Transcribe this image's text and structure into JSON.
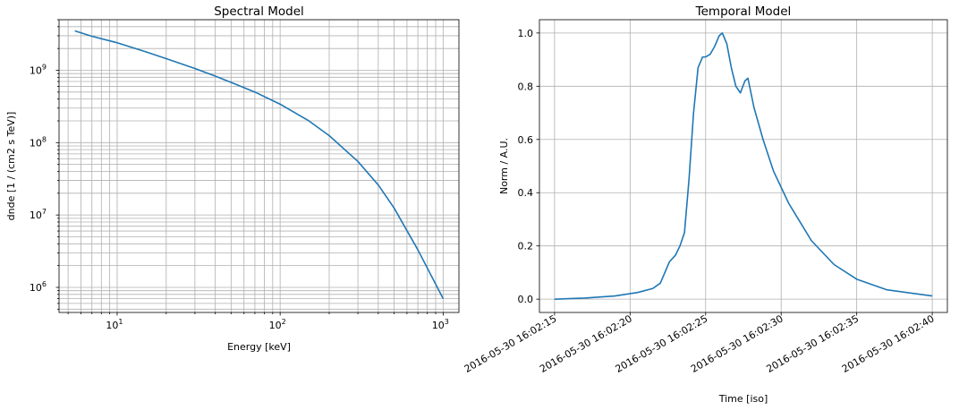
{
  "chart_data": [
    {
      "type": "line",
      "title": "Spectral Model",
      "xlabel": "Energy [keV]",
      "ylabel": "dnde [1 / (cm2 s TeV)]",
      "xscale": "log",
      "yscale": "log",
      "xlim": [
        4.4,
        1250
      ],
      "ylim": [
        450000,
        5000000000
      ],
      "grid": "major and minor",
      "x_ticks": [
        {
          "value": 10,
          "base": "10",
          "exp": "1"
        },
        {
          "value": 100,
          "base": "10",
          "exp": "2"
        },
        {
          "value": 1000,
          "base": "10",
          "exp": "3"
        }
      ],
      "y_ticks": [
        {
          "value": 1000000,
          "base": "10",
          "exp": "6"
        },
        {
          "value": 10000000,
          "base": "10",
          "exp": "7"
        },
        {
          "value": 100000000,
          "base": "10",
          "exp": "8"
        },
        {
          "value": 1000000000,
          "base": "10",
          "exp": "9"
        }
      ],
      "series": [
        {
          "color": "#1f77b4",
          "x": [
            5.5,
            7,
            10,
            15,
            20,
            30,
            40,
            50,
            70,
            100,
            150,
            200,
            300,
            400,
            500,
            700,
            1000
          ],
          "y": [
            3500000000,
            2950000000,
            2400000000,
            1800000000,
            1450000000,
            1060000000,
            830000000,
            680000000,
            500000000,
            340000000,
            200000000,
            125000000,
            55000000,
            26000000,
            12500000,
            3300000,
            700000
          ]
        }
      ]
    },
    {
      "type": "line",
      "title": "Temporal Model",
      "xlabel": "Time [iso]",
      "ylabel": "Norm / A.U.",
      "xlim": [
        "2016-05-30 16:02:14.0",
        "2016-05-30 16:02:41.0"
      ],
      "ylim": [
        -0.05,
        1.05
      ],
      "grid": "major",
      "x_ticks": [
        {
          "value": 15,
          "label": "2016-05-30 16:02:15"
        },
        {
          "value": 20,
          "label": "2016-05-30 16:02:20"
        },
        {
          "value": 25,
          "label": "2016-05-30 16:02:25"
        },
        {
          "value": 30,
          "label": "2016-05-30 16:02:30"
        },
        {
          "value": 35,
          "label": "2016-05-30 16:02:35"
        },
        {
          "value": 40,
          "label": "2016-05-30 16:02:40"
        }
      ],
      "y_ticks": [
        {
          "value": 0.0,
          "label": "0.0"
        },
        {
          "value": 0.2,
          "label": "0.2"
        },
        {
          "value": 0.4,
          "label": "0.4"
        },
        {
          "value": 0.6,
          "label": "0.6"
        },
        {
          "value": 0.8,
          "label": "0.8"
        },
        {
          "value": 1.0,
          "label": "1.0"
        }
      ],
      "series": [
        {
          "color": "#1f77b4",
          "x": [
            "2016-05-30 16:02:15.0",
            "2016-05-30 16:02:17.0",
            "2016-05-30 16:02:19.0",
            "2016-05-30 16:02:20.5",
            "2016-05-30 16:02:21.5",
            "2016-05-30 16:02:22.0",
            "2016-05-30 16:02:22.3",
            "2016-05-30 16:02:22.6",
            "2016-05-30 16:02:23.0",
            "2016-05-30 16:02:23.3",
            "2016-05-30 16:02:23.6",
            "2016-05-30 16:02:23.9",
            "2016-05-30 16:02:24.2",
            "2016-05-30 16:02:24.5",
            "2016-05-30 16:02:24.8",
            "2016-05-30 16:02:25.0",
            "2016-05-30 16:02:25.3",
            "2016-05-30 16:02:25.6",
            "2016-05-30 16:02:25.9",
            "2016-05-30 16:02:26.1",
            "2016-05-30 16:02:26.4",
            "2016-05-30 16:02:26.7",
            "2016-05-30 16:02:27.0",
            "2016-05-30 16:02:27.3",
            "2016-05-30 16:02:27.6",
            "2016-05-30 16:02:27.8",
            "2016-05-30 16:02:28.2",
            "2016-05-30 16:02:28.8",
            "2016-05-30 16:02:29.5",
            "2016-05-30 16:02:30.5",
            "2016-05-30 16:02:32.0",
            "2016-05-30 16:02:33.5",
            "2016-05-30 16:02:35.0",
            "2016-05-30 16:02:37.0",
            "2016-05-30 16:02:40.0"
          ],
          "y": [
            0.0,
            0.004,
            0.012,
            0.025,
            0.04,
            0.06,
            0.1,
            0.14,
            0.165,
            0.2,
            0.25,
            0.45,
            0.7,
            0.87,
            0.91,
            0.91,
            0.92,
            0.95,
            0.99,
            1.0,
            0.96,
            0.87,
            0.8,
            0.775,
            0.82,
            0.83,
            0.72,
            0.6,
            0.48,
            0.36,
            0.22,
            0.13,
            0.075,
            0.035,
            0.012
          ]
        }
      ]
    }
  ]
}
